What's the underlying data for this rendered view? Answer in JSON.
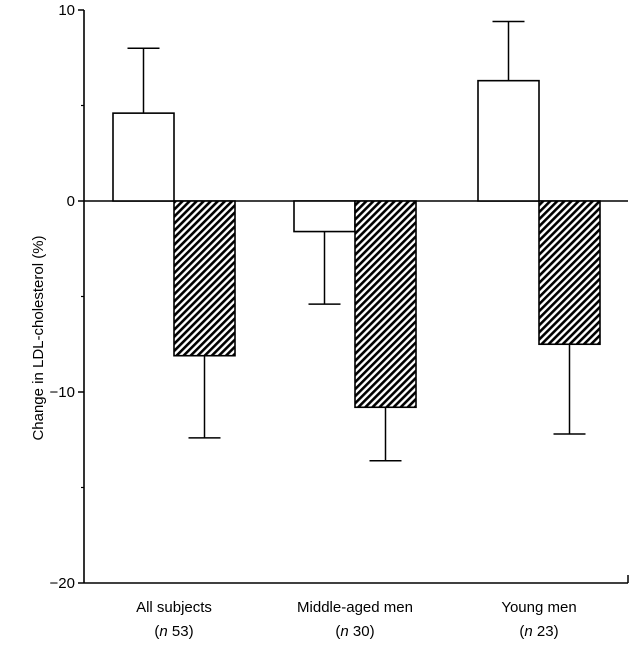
{
  "chart_data": {
    "type": "bar",
    "title": "",
    "xlabel": "",
    "ylabel": "Change in LDL-cholesterol (%)",
    "ylim": [
      -20,
      10
    ],
    "yticks": [
      -20,
      -10,
      0,
      10
    ],
    "ytick_labels": [
      "−20",
      "−10",
      "0",
      "10"
    ],
    "categories": [
      "All subjects",
      "Middle-aged men",
      "Young men"
    ],
    "category_n": [
      {
        "n": "n",
        "count": " 53)"
      },
      {
        "n": "n",
        "count": " 30)"
      },
      {
        "n": "n",
        "count": " 23)"
      }
    ],
    "series": [
      {
        "style": "open",
        "fill": "#ffffff",
        "values": [
          4.6,
          -1.6,
          6.3
        ],
        "errors": [
          3.4,
          3.8,
          3.1
        ]
      },
      {
        "style": "hatched",
        "fill": "#555555",
        "values": [
          -8.1,
          -10.8,
          -7.5
        ],
        "errors": [
          4.3,
          2.8,
          4.7
        ]
      }
    ],
    "grid": false,
    "legend": "none"
  }
}
